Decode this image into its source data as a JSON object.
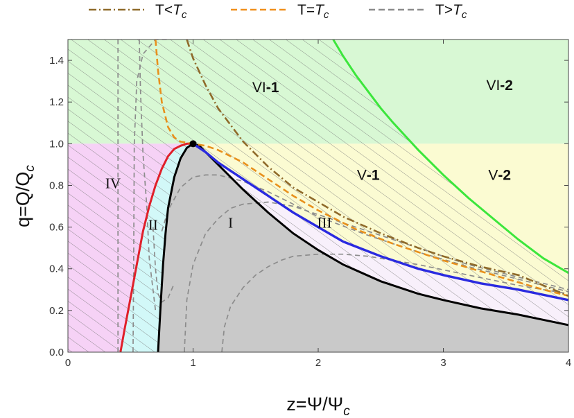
{
  "chart_data": {
    "type": "line",
    "xlabel": "z=Ψ/Ψc",
    "ylabel": "q=Q/Qc",
    "xlim": [
      0,
      4
    ],
    "ylim": [
      0,
      1.5
    ],
    "x_ticks": [
      "0",
      "1",
      "2",
      "3",
      "4"
    ],
    "y_ticks": [
      "0.0",
      "0.2",
      "0.4",
      "0.6",
      "0.8",
      "1.0",
      "1.2",
      "1.4"
    ],
    "grid": false,
    "legend": {
      "placement": "top",
      "entries": [
        {
          "label": "T<Tc",
          "color": "#8f6a2a",
          "style": "dash-dot"
        },
        {
          "label": "T=Tc",
          "color": "#f0901c",
          "style": "dashed"
        },
        {
          "label": "T>Tc",
          "color": "#8c8c8c",
          "style": "dashed"
        }
      ]
    },
    "region_labels": [
      {
        "text": "I",
        "x": 1.3,
        "y": 0.62
      },
      {
        "text": "II",
        "x": 0.68,
        "y": 0.61
      },
      {
        "text": "III",
        "x": 2.05,
        "y": 0.62
      },
      {
        "text": "IV",
        "x": 0.36,
        "y": 0.81
      },
      {
        "text": "V-1",
        "x": 2.4,
        "y": 0.85
      },
      {
        "text": "V-2",
        "x": 3.45,
        "y": 0.85
      },
      {
        "text": "VI-1",
        "x": 1.58,
        "y": 1.27
      },
      {
        "text": "VI-2",
        "x": 3.45,
        "y": 1.28
      }
    ],
    "critical_point": {
      "x": 1.0,
      "y": 1.0
    },
    "colors": {
      "region_green": "#d8f8d4",
      "region_yellow": "#fbfbd2",
      "region_magenta": "#f6d2f6",
      "region_cyan": "#d2f8f8",
      "region_gray": "#c9c9c9",
      "region_lavender": "#f8f0fb",
      "hatch": "#7a7a7a",
      "red_curve": "#e0202a",
      "black_curve": "#000000",
      "blue_curve": "#2a2ae0",
      "green_curve": "#3ce63c",
      "orange_dashed": "#e8901c",
      "brown_dashdot": "#8f6a2a",
      "gray_dashed": "#8c8c8c"
    },
    "series": [
      {
        "name": "T<Tc",
        "style": "dash-dot",
        "x": [
          0.95,
          1.0,
          1.1,
          1.2,
          1.4,
          1.6,
          1.8,
          2.0,
          2.2,
          2.5,
          2.8,
          3.0,
          3.3,
          3.6,
          4.0
        ],
        "y": [
          1.5,
          1.41,
          1.28,
          1.17,
          1.01,
          0.89,
          0.79,
          0.72,
          0.65,
          0.57,
          0.5,
          0.46,
          0.41,
          0.37,
          0.27
        ]
      },
      {
        "name": "T=Tc",
        "style": "dashed",
        "x": [
          0.7,
          0.72,
          0.75,
          0.8,
          0.85,
          0.9,
          1.0,
          1.1,
          1.2,
          1.4,
          1.6,
          1.8,
          2.0,
          2.3,
          2.6,
          3.0,
          3.4,
          3.8,
          4.0
        ],
        "y": [
          1.5,
          1.35,
          1.2,
          1.08,
          1.03,
          1.01,
          1.0,
          0.99,
          0.97,
          0.91,
          0.83,
          0.75,
          0.68,
          0.59,
          0.52,
          0.44,
          0.37,
          0.3,
          0.27
        ]
      }
    ],
    "curves": {
      "red": {
        "x": [
          0.42,
          0.45,
          0.5,
          0.55,
          0.6,
          0.65,
          0.7,
          0.75,
          0.8,
          0.85,
          0.9,
          0.95,
          1.0
        ],
        "y": [
          0.0,
          0.1,
          0.26,
          0.42,
          0.58,
          0.7,
          0.8,
          0.88,
          0.94,
          0.975,
          0.99,
          1.0,
          1.0
        ]
      },
      "black": {
        "x": [
          0.72,
          0.74,
          0.76,
          0.78,
          0.8,
          0.85,
          0.9,
          0.95,
          1.0,
          1.05,
          1.1,
          1.2,
          1.3,
          1.4,
          1.6,
          1.8,
          2.0,
          2.2,
          2.5,
          2.8,
          3.0,
          3.3,
          3.6,
          4.0
        ],
        "y": [
          0.0,
          0.22,
          0.42,
          0.57,
          0.69,
          0.84,
          0.93,
          0.98,
          1.0,
          0.99,
          0.96,
          0.9,
          0.84,
          0.78,
          0.67,
          0.57,
          0.49,
          0.42,
          0.34,
          0.28,
          0.25,
          0.21,
          0.18,
          0.13
        ]
      },
      "blue": {
        "x": [
          1.0,
          1.1,
          1.2,
          1.3,
          1.4,
          1.6,
          1.8,
          2.0,
          2.2,
          2.5,
          2.8,
          3.0,
          3.3,
          3.6,
          4.0
        ],
        "y": [
          1.0,
          0.96,
          0.91,
          0.87,
          0.83,
          0.75,
          0.67,
          0.6,
          0.53,
          0.46,
          0.4,
          0.37,
          0.33,
          0.3,
          0.25
        ]
      },
      "green": {
        "x": [
          2.12,
          2.2,
          2.3,
          2.4,
          2.5,
          2.6,
          2.8,
          3.0,
          3.2,
          3.4,
          3.6,
          3.8,
          4.0
        ],
        "y": [
          1.5,
          1.42,
          1.33,
          1.25,
          1.17,
          1.1,
          0.97,
          0.85,
          0.74,
          0.64,
          0.54,
          0.45,
          0.38
        ]
      }
    },
    "gray_dashed_curves": [
      {
        "x": [
          0.4,
          0.4
        ],
        "y": [
          0.0,
          1.5
        ]
      },
      {
        "x": [
          0.52,
          0.525,
          0.53,
          0.55,
          0.6,
          0.7,
          0.8
        ],
        "y": [
          0.0,
          0.4,
          1.0,
          1.3,
          1.43,
          1.5,
          1.5
        ]
      },
      {
        "x": [
          0.57,
          0.58,
          0.6,
          0.63,
          0.65,
          0.7
        ],
        "y": [
          1.5,
          1.25,
          0.95,
          0.7,
          0.45,
          0.2
        ]
      },
      {
        "x": [
          0.75,
          0.8,
          0.9,
          1.0,
          1.1,
          1.2,
          1.4,
          1.6,
          1.8,
          2.0,
          2.4,
          2.8,
          3.2,
          3.6,
          4.0
        ],
        "y": [
          0.58,
          0.68,
          0.79,
          0.84,
          0.85,
          0.85,
          0.82,
          0.77,
          0.71,
          0.65,
          0.56,
          0.48,
          0.41,
          0.35,
          0.29
        ]
      },
      {
        "x": [
          0.93,
          0.95,
          1.0,
          1.1,
          1.2,
          1.3,
          1.4,
          1.6,
          1.8,
          2.0,
          2.4,
          2.8,
          3.2,
          3.6,
          4.0
        ],
        "y": [
          0.0,
          0.25,
          0.42,
          0.57,
          0.64,
          0.69,
          0.71,
          0.72,
          0.7,
          0.66,
          0.58,
          0.5,
          0.42,
          0.36,
          0.3
        ]
      },
      {
        "x": [
          1.23,
          1.25,
          1.3,
          1.4,
          1.5,
          1.6,
          1.7,
          1.8,
          2.0,
          2.2,
          2.4,
          2.8,
          3.2,
          3.6,
          4.0
        ],
        "y": [
          0.0,
          0.12,
          0.22,
          0.31,
          0.37,
          0.41,
          0.44,
          0.46,
          0.47,
          0.47,
          0.46,
          0.42,
          0.37,
          0.32,
          0.28
        ]
      },
      {
        "x": [
          0.68,
          0.7,
          0.72,
          0.75,
          0.8,
          0.85
        ],
        "y": [
          0.6,
          0.4,
          0.28,
          0.24,
          0.26,
          0.33
        ]
      }
    ]
  }
}
